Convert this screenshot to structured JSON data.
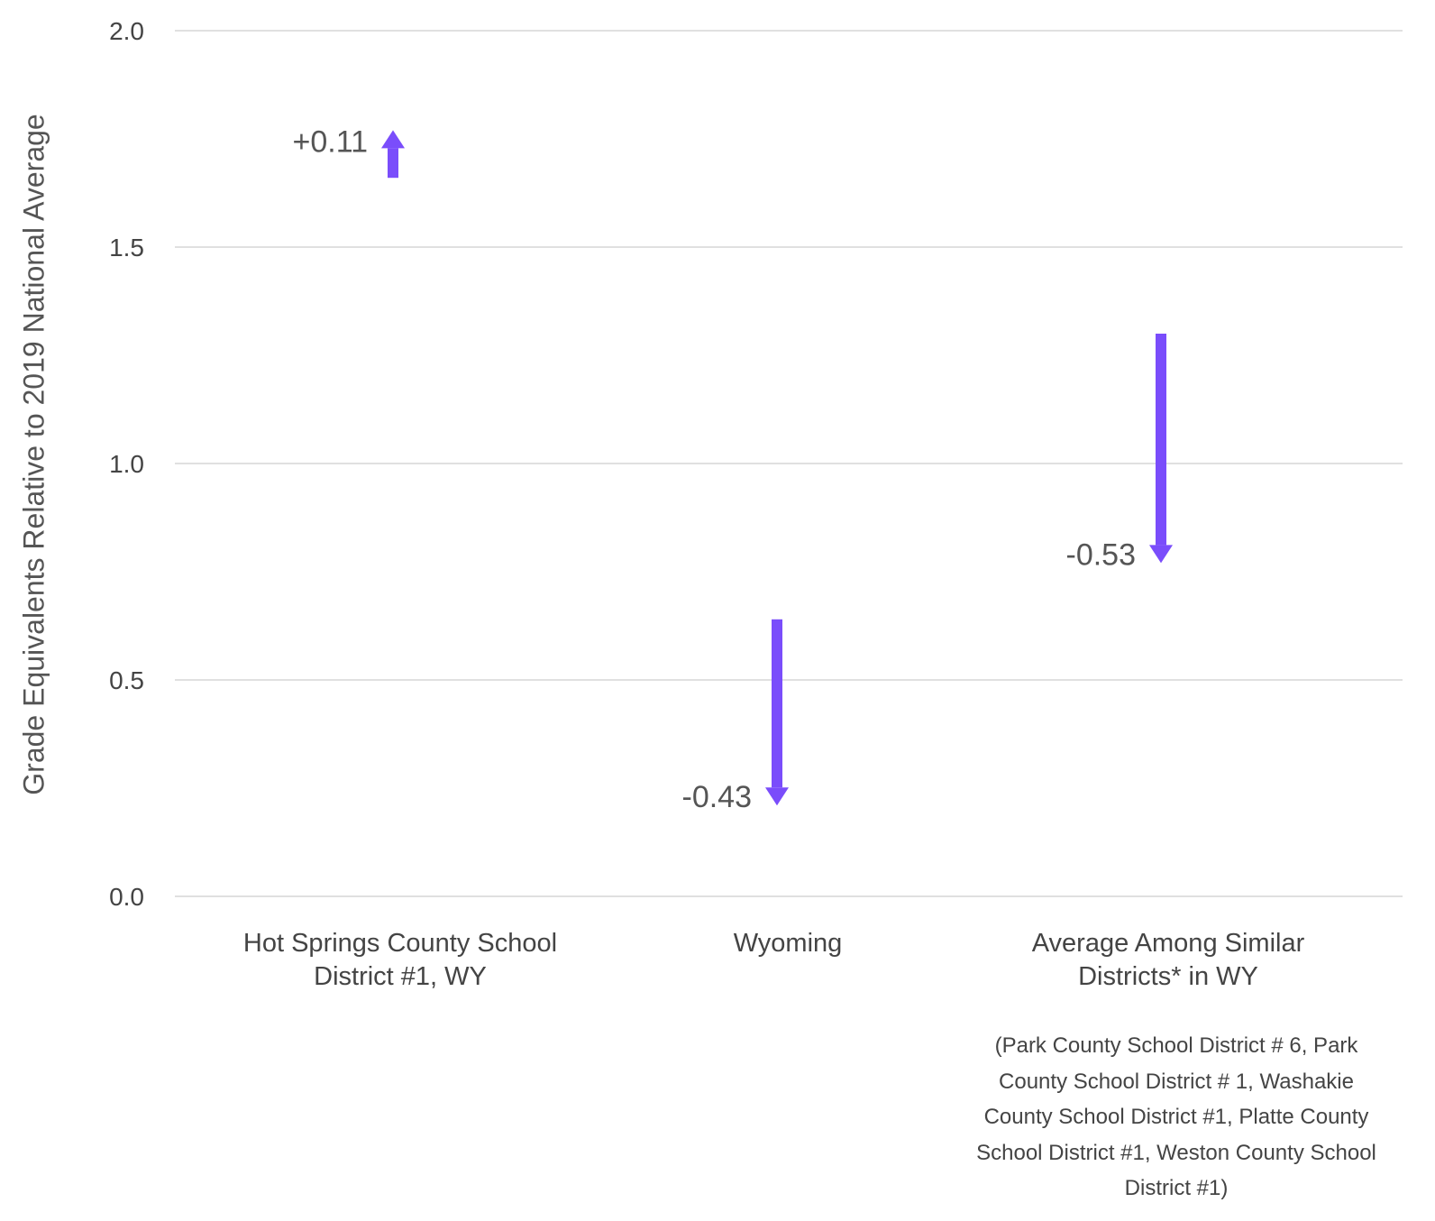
{
  "chart_data": {
    "type": "arrow",
    "ylabel": "Grade Equivalents Relative to 2019 National Average",
    "ylim": [
      0,
      2.0
    ],
    "yticks": [
      "0.0",
      "0.5",
      "1.0",
      "1.5",
      "2.0"
    ],
    "ytick_values": [
      0,
      0.5,
      1.0,
      1.5,
      2.0
    ],
    "grid": true,
    "arrow_color": "#7a4dfb",
    "categories": [
      {
        "label": "Hot Springs County School District #1, WY",
        "label_lines": [
          "Hot Springs County School",
          "District #1, WY"
        ],
        "start": 1.66,
        "end": 1.77,
        "change": 0.11,
        "change_label": "+0.11"
      },
      {
        "label": "Wyoming",
        "label_lines": [
          "Wyoming"
        ],
        "start": 0.64,
        "end": 0.21,
        "change": -0.43,
        "change_label": "-0.43"
      },
      {
        "label": "Average Among Similar Districts* in WY",
        "label_lines": [
          "Average Among Similar",
          "Districts* in WY"
        ],
        "start": 1.3,
        "end": 0.77,
        "change": -0.53,
        "change_label": "-0.53"
      }
    ],
    "footnote_lines": [
      "(Park County School District # 6, Park",
      "County School District # 1, Washakie",
      "County School District #1, Platte County",
      "School District #1, Weston County School",
      "District #1)"
    ]
  }
}
